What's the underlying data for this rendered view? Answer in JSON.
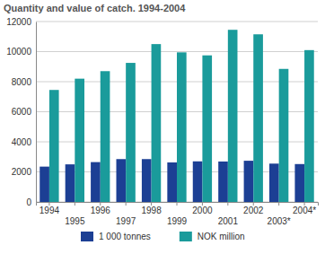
{
  "chart_data": {
    "type": "bar",
    "title": "Quantity and value of catch. 1994-2004",
    "categories": [
      "1994",
      "1995",
      "1996",
      "1997",
      "1998",
      "1999",
      "2000",
      "2001",
      "2002",
      "2003*",
      "2004*"
    ],
    "series": [
      {
        "name": "1 000 tonnes",
        "color": "#1c3f94",
        "values": [
          2350,
          2500,
          2650,
          2850,
          2850,
          2630,
          2700,
          2690,
          2740,
          2550,
          2520
        ]
      },
      {
        "name": "NOK million",
        "color": "#1a9b9b",
        "values": [
          7450,
          8200,
          8700,
          9250,
          10500,
          9950,
          9750,
          11450,
          11150,
          8850,
          10100
        ]
      }
    ],
    "ylim": [
      0,
      12000
    ],
    "yticks": [
      0,
      2000,
      4000,
      6000,
      8000,
      10000,
      12000
    ],
    "grid": true,
    "legend": "bottom"
  }
}
